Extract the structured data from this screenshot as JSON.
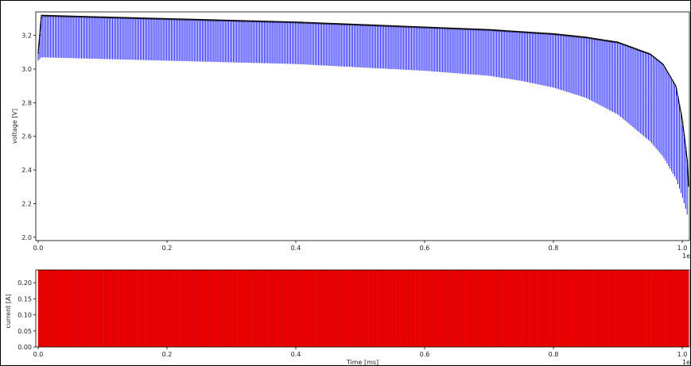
{
  "chart_data": [
    {
      "type": "line",
      "title": "",
      "ylabel": "voltage [V]",
      "xlabel": "",
      "x_offset_label": "1e",
      "xlim": [
        0,
        1.0
      ],
      "ylim": [
        1.98,
        3.34
      ],
      "xticks": [
        "0.0",
        "0.2",
        "0.4",
        "0.6",
        "0.8",
        "1.0"
      ],
      "yticks": [
        "2.0",
        "2.2",
        "2.4",
        "2.6",
        "2.8",
        "3.0",
        "3.2"
      ],
      "grid": false,
      "series": [
        {
          "role": "upper envelope (rest voltage)",
          "color": "#000000",
          "x": [
            0.0,
            0.005,
            0.1,
            0.2,
            0.3,
            0.4,
            0.5,
            0.6,
            0.7,
            0.8,
            0.85,
            0.9,
            0.95,
            0.97,
            0.99,
            1.0,
            1.008,
            1.01
          ],
          "y": [
            3.1,
            3.32,
            3.31,
            3.3,
            3.29,
            3.28,
            3.265,
            3.25,
            3.235,
            3.21,
            3.19,
            3.16,
            3.09,
            3.03,
            2.9,
            2.7,
            2.45,
            2.3
          ]
        },
        {
          "role": "lower envelope (loaded voltage)",
          "color": "#0000ff",
          "x": [
            0.0,
            0.005,
            0.1,
            0.2,
            0.3,
            0.4,
            0.5,
            0.6,
            0.7,
            0.75,
            0.8,
            0.85,
            0.9,
            0.95,
            0.97,
            0.99,
            1.0,
            1.008,
            1.01
          ],
          "y": [
            3.05,
            3.07,
            3.06,
            3.05,
            3.04,
            3.03,
            3.01,
            2.99,
            2.96,
            2.93,
            2.89,
            2.83,
            2.73,
            2.57,
            2.48,
            2.35,
            2.24,
            2.13,
            2.08
          ]
        }
      ]
    },
    {
      "type": "line",
      "title": "",
      "ylabel": "current [A]",
      "xlabel": "Time [ms]",
      "x_offset_label": "1e",
      "xlim": [
        0,
        1.0
      ],
      "ylim": [
        0.0,
        0.24
      ],
      "xticks": [
        "0.0",
        "0.2",
        "0.4",
        "0.6",
        "0.8",
        "1.0"
      ],
      "yticks": [
        "0.00",
        "0.05",
        "0.10",
        "0.15",
        "0.20"
      ],
      "grid": false,
      "series": [
        {
          "role": "pulsed load current",
          "color": "#ff0000",
          "x": [
            0.0,
            1.01
          ],
          "y_low": 0.0,
          "y_high": 0.24
        }
      ]
    }
  ]
}
